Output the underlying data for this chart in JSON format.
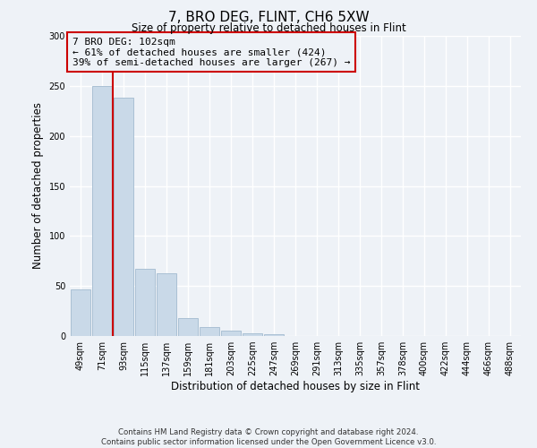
{
  "title": "7, BRO DEG, FLINT, CH6 5XW",
  "subtitle": "Size of property relative to detached houses in Flint",
  "xlabel": "Distribution of detached houses by size in Flint",
  "ylabel": "Number of detached properties",
  "footer_line1": "Contains HM Land Registry data © Crown copyright and database right 2024.",
  "footer_line2": "Contains public sector information licensed under the Open Government Licence v3.0.",
  "bins": [
    "49sqm",
    "71sqm",
    "93sqm",
    "115sqm",
    "137sqm",
    "159sqm",
    "181sqm",
    "203sqm",
    "225sqm",
    "247sqm",
    "269sqm",
    "291sqm",
    "313sqm",
    "335sqm",
    "357sqm",
    "378sqm",
    "400sqm",
    "422sqm",
    "444sqm",
    "466sqm",
    "488sqm"
  ],
  "values": [
    47,
    250,
    238,
    67,
    63,
    18,
    9,
    5,
    3,
    2,
    0,
    0,
    0,
    0,
    0,
    0,
    0,
    0,
    0,
    0,
    0
  ],
  "bar_color": "#c9d9e8",
  "bar_edge_color": "#aac0d4",
  "ylim": [
    0,
    300
  ],
  "yticks": [
    0,
    50,
    100,
    150,
    200,
    250,
    300
  ],
  "vline_x_index": 1.5,
  "vline_color": "#cc0000",
  "annotation_box_color": "#cc0000",
  "property_label": "7 BRO DEG: 102sqm",
  "annotation_line1": "← 61% of detached houses are smaller (424)",
  "annotation_line2": "39% of semi-detached houses are larger (267) →",
  "background_color": "#eef2f7",
  "grid_color": "#ffffff"
}
